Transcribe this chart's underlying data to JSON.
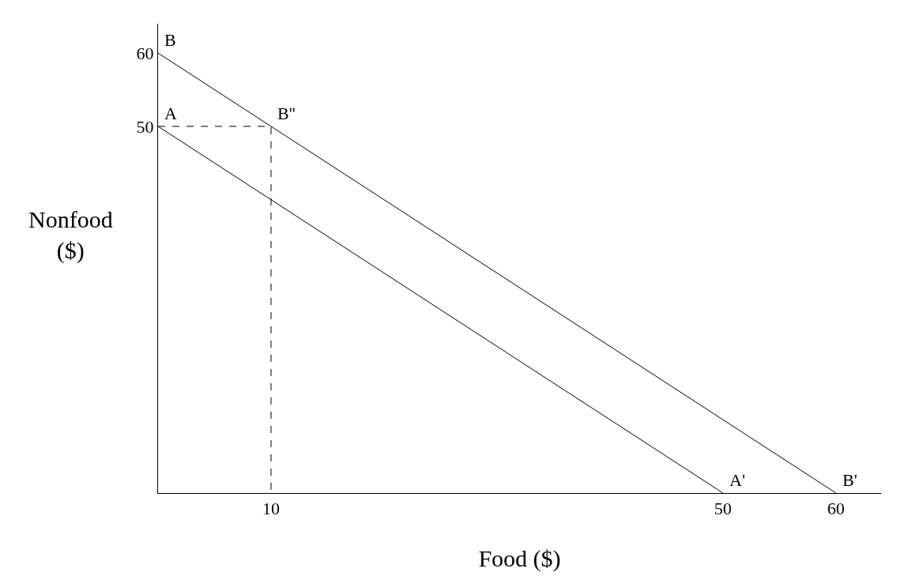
{
  "chart_data": {
    "type": "line",
    "xlabel": "Food ($)",
    "ylabel": "Nonfood\n($)",
    "xlim": [
      0,
      64
    ],
    "ylim": [
      0,
      64
    ],
    "xticks": [
      10,
      50,
      60
    ],
    "yticks": [
      50,
      60
    ],
    "marker": "none",
    "series": [
      {
        "color": "#000000",
        "x": [
          0,
          50
        ],
        "values": [
          50,
          0
        ],
        "line_style": "solid"
      },
      {
        "color": "#000000",
        "x": [
          0,
          60
        ],
        "values": [
          60,
          0
        ],
        "line_style": "solid"
      },
      {
        "color": "#000000",
        "x": [
          0,
          10,
          10
        ],
        "values": [
          50,
          50,
          0
        ],
        "line_style": "dashed"
      }
    ],
    "annotations": [
      {
        "text": "A",
        "x": 0,
        "y": 50
      },
      {
        "text": "B",
        "x": 0,
        "y": 60
      },
      {
        "text": "B''",
        "x": 10,
        "y": 50
      },
      {
        "text": "A'",
        "x": 50,
        "y": 0
      },
      {
        "text": "B'",
        "x": 60,
        "y": 0
      }
    ]
  }
}
